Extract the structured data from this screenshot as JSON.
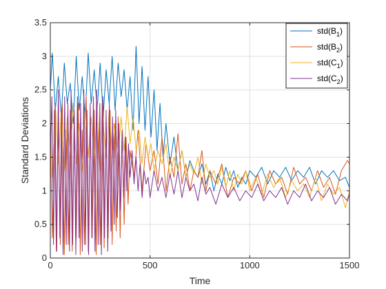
{
  "chart_data": {
    "type": "line",
    "xlabel": "Time",
    "ylabel": "Standard Deviations",
    "xlim": [
      0,
      1500
    ],
    "ylim": [
      0,
      3.5
    ],
    "xticks": [
      0,
      500,
      1000,
      1500
    ],
    "xtick_labels": [
      "0",
      "500",
      "1000",
      "1500"
    ],
    "yticks": [
      0,
      0.5,
      1,
      1.5,
      2,
      2.5,
      3,
      3.5
    ],
    "ytick_labels": [
      "0",
      "0.5",
      "1",
      "1.5",
      "2",
      "2.5",
      "3",
      "3.5"
    ],
    "grid": true,
    "legend_position": "top-right",
    "series": [
      {
        "name": "std(B1)",
        "label_base": "std(B",
        "label_sub": "1",
        "label_end": ")",
        "color": "#0072BD",
        "x": [
          0,
          10,
          25,
          40,
          55,
          70,
          85,
          100,
          115,
          130,
          145,
          160,
          175,
          190,
          205,
          220,
          235,
          250,
          265,
          280,
          295,
          310,
          325,
          340,
          355,
          370,
          385,
          400,
          415,
          430,
          445,
          460,
          475,
          490,
          505,
          520,
          535,
          550,
          565,
          580,
          600,
          620,
          640,
          660,
          680,
          700,
          720,
          740,
          760,
          780,
          800,
          820,
          840,
          860,
          880,
          900,
          920,
          940,
          960,
          980,
          1000,
          1030,
          1060,
          1090,
          1120,
          1150,
          1180,
          1210,
          1240,
          1270,
          1300,
          1330,
          1360,
          1390,
          1420,
          1450,
          1480,
          1500
        ],
        "y": [
          2.5,
          3.05,
          2.2,
          2.7,
          2.1,
          2.9,
          2.3,
          2.6,
          2.0,
          3.0,
          2.2,
          2.7,
          2.1,
          3.05,
          2.3,
          2.8,
          2.2,
          2.9,
          2.1,
          2.8,
          2.3,
          3.0,
          2.2,
          2.9,
          2.4,
          2.8,
          2.2,
          2.7,
          1.9,
          3.15,
          2.0,
          2.85,
          1.9,
          2.7,
          1.8,
          2.5,
          1.6,
          2.3,
          1.5,
          2.0,
          1.4,
          1.8,
          1.3,
          1.6,
          1.2,
          1.45,
          1.3,
          1.2,
          1.4,
          1.1,
          1.3,
          1.0,
          1.25,
          1.1,
          1.35,
          1.15,
          1.3,
          1.05,
          1.2,
          1.1,
          1.3,
          1.2,
          1.35,
          1.1,
          1.3,
          1.2,
          1.35,
          1.15,
          1.3,
          1.2,
          1.35,
          1.1,
          1.3,
          1.2,
          1.3,
          1.15,
          1.2,
          1.05
        ]
      },
      {
        "name": "std(B2)",
        "label_base": "std(B",
        "label_sub": "2",
        "label_end": ")",
        "color": "#D95319",
        "x": [
          0,
          10,
          20,
          30,
          40,
          50,
          60,
          70,
          80,
          90,
          100,
          110,
          120,
          130,
          140,
          150,
          160,
          170,
          180,
          190,
          200,
          210,
          220,
          230,
          240,
          250,
          260,
          270,
          280,
          290,
          300,
          310,
          320,
          330,
          340,
          350,
          360,
          370,
          380,
          390,
          400,
          420,
          440,
          460,
          480,
          500,
          520,
          540,
          560,
          580,
          600,
          620,
          640,
          660,
          680,
          700,
          720,
          740,
          760,
          780,
          800,
          830,
          860,
          890,
          920,
          950,
          980,
          1010,
          1040,
          1070,
          1100,
          1130,
          1160,
          1190,
          1220,
          1250,
          1280,
          1310,
          1340,
          1370,
          1400,
          1430,
          1460,
          1490,
          1500
        ],
        "y": [
          1.8,
          0.3,
          2.2,
          0.1,
          2.0,
          0.2,
          2.3,
          0.05,
          1.9,
          0.2,
          2.2,
          0.1,
          2.0,
          0.3,
          2.3,
          0.05,
          1.9,
          0.2,
          2.4,
          0.1,
          2.1,
          0.3,
          2.2,
          0.05,
          2.0,
          0.2,
          2.3,
          0.15,
          2.1,
          0.3,
          2.2,
          0.2,
          2.0,
          0.4,
          2.1,
          0.3,
          1.9,
          0.5,
          1.8,
          0.8,
          1.6,
          1.2,
          1.9,
          1.0,
          1.7,
          1.3,
          1.6,
          1.1,
          1.8,
          1.0,
          1.5,
          1.2,
          1.85,
          1.1,
          1.4,
          1.0,
          1.3,
          1.2,
          1.6,
          1.0,
          1.3,
          1.1,
          1.4,
          0.9,
          1.2,
          1.1,
          1.3,
          1.0,
          1.25,
          0.9,
          1.3,
          1.1,
          1.2,
          0.95,
          1.35,
          1.1,
          1.2,
          1.0,
          1.3,
          1.05,
          1.2,
          0.95,
          1.3,
          1.45,
          1.4
        ]
      },
      {
        "name": "std(C1)",
        "label_base": "std(C",
        "label_sub": "1",
        "label_end": ")",
        "color": "#EDB120",
        "x": [
          0,
          10,
          25,
          40,
          55,
          70,
          85,
          100,
          115,
          130,
          145,
          160,
          175,
          190,
          205,
          220,
          235,
          250,
          265,
          280,
          295,
          310,
          325,
          340,
          355,
          370,
          385,
          400,
          415,
          430,
          445,
          460,
          475,
          490,
          505,
          520,
          540,
          560,
          580,
          600,
          620,
          640,
          660,
          680,
          700,
          720,
          740,
          760,
          780,
          800,
          820,
          840,
          860,
          880,
          900,
          920,
          940,
          960,
          980,
          1000,
          1030,
          1060,
          1090,
          1120,
          1150,
          1180,
          1210,
          1240,
          1270,
          1300,
          1330,
          1360,
          1390,
          1420,
          1450,
          1480,
          1500
        ],
        "y": [
          2.0,
          1.2,
          2.3,
          1.4,
          2.2,
          1.3,
          2.1,
          1.5,
          2.3,
          1.4,
          2.0,
          1.3,
          2.2,
          1.5,
          2.1,
          1.4,
          2.3,
          1.3,
          2.0,
          1.5,
          2.2,
          1.6,
          2.0,
          1.5,
          2.1,
          1.6,
          2.25,
          1.7,
          2.1,
          1.6,
          1.9,
          1.4,
          1.8,
          1.5,
          1.7,
          1.3,
          1.6,
          1.4,
          1.7,
          1.2,
          1.5,
          1.3,
          1.6,
          1.2,
          1.4,
          1.25,
          1.5,
          1.1,
          1.4,
          1.2,
          1.3,
          1.1,
          1.35,
          1.05,
          1.3,
          1.0,
          1.25,
          1.1,
          1.3,
          1.0,
          1.2,
          0.95,
          1.25,
          1.05,
          1.2,
          0.9,
          1.15,
          1.0,
          1.1,
          0.9,
          1.2,
          0.85,
          1.1,
          0.95,
          1.05,
          0.75,
          1.0
        ]
      },
      {
        "name": "std(C2)",
        "label_base": "std(C",
        "label_sub": "2",
        "label_end": ")",
        "color": "#7E2F8E",
        "x": [
          0,
          8,
          16,
          24,
          32,
          40,
          48,
          56,
          64,
          72,
          80,
          88,
          96,
          104,
          112,
          120,
          128,
          136,
          144,
          152,
          160,
          168,
          176,
          184,
          192,
          200,
          208,
          216,
          224,
          232,
          240,
          248,
          256,
          264,
          272,
          280,
          288,
          296,
          304,
          312,
          320,
          328,
          336,
          344,
          352,
          360,
          368,
          376,
          384,
          392,
          400,
          410,
          420,
          430,
          440,
          450,
          460,
          470,
          480,
          490,
          500,
          520,
          540,
          560,
          580,
          600,
          620,
          640,
          660,
          680,
          700,
          720,
          740,
          760,
          780,
          800,
          830,
          860,
          890,
          920,
          950,
          980,
          1010,
          1040,
          1070,
          1100,
          1130,
          1160,
          1190,
          1220,
          1250,
          1280,
          1310,
          1340,
          1370,
          1400,
          1430,
          1460,
          1490,
          1500
        ],
        "y": [
          1.5,
          2.4,
          0.2,
          2.3,
          0.1,
          2.5,
          0.3,
          2.2,
          0.05,
          2.4,
          0.2,
          2.3,
          0.1,
          2.5,
          0.2,
          2.2,
          0.05,
          2.4,
          0.3,
          2.3,
          0.1,
          2.5,
          0.2,
          2.2,
          0.05,
          2.3,
          0.3,
          2.4,
          0.1,
          2.5,
          0.2,
          2.3,
          0.05,
          2.4,
          0.3,
          2.2,
          0.1,
          2.3,
          0.4,
          2.1,
          0.5,
          2.2,
          0.6,
          2.0,
          0.7,
          1.9,
          0.9,
          1.8,
          1.0,
          1.7,
          1.2,
          1.6,
          1.1,
          1.5,
          1.0,
          1.4,
          0.9,
          1.3,
          1.1,
          1.2,
          0.9,
          1.3,
          1.0,
          1.2,
          0.9,
          1.25,
          0.95,
          1.3,
          0.9,
          1.2,
          1.0,
          1.1,
          0.85,
          1.2,
          0.95,
          1.05,
          0.8,
          1.1,
          0.9,
          1.05,
          0.85,
          1.0,
          0.9,
          1.1,
          0.85,
          1.0,
          0.9,
          1.05,
          0.8,
          1.0,
          0.9,
          1.1,
          0.85,
          1.0,
          0.9,
          1.05,
          0.8,
          0.95,
          0.85,
          0.95
        ]
      }
    ]
  }
}
